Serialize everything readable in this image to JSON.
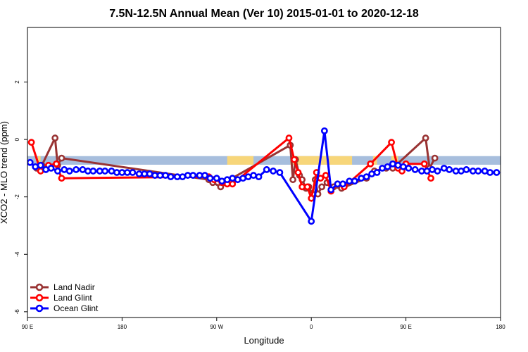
{
  "chart_data": {
    "type": "line",
    "title": "7.5N-12.5N Annual Mean (Ver 10)   2015-01-01 to 2020-12-18",
    "xlabel": "Longitude",
    "ylabel": "XCO2 - MLO trend (ppm)",
    "xlim": [
      -90,
      270
    ],
    "ylim": [
      -6.2,
      3.9
    ],
    "x_ticks": [
      {
        "value": -90,
        "label": "90 E"
      },
      {
        "value": -18,
        "label": "180"
      },
      {
        "value": 54,
        "label": "90 W"
      },
      {
        "value": 126,
        "label": "0"
      },
      {
        "value": 198,
        "label": "90 E"
      },
      {
        "value": 270,
        "label": "180"
      }
    ],
    "y_ticks": [
      {
        "value": 2,
        "label": "2"
      },
      {
        "value": 0,
        "label": "0"
      },
      {
        "value": -2,
        "label": "-2"
      },
      {
        "value": -4,
        "label": "-4"
      },
      {
        "value": -6,
        "label": "-6"
      }
    ],
    "grid": false,
    "legend": "bottom-left",
    "land_mask": {
      "band_color": "#a7bedd",
      "land_color": "#f7d67a",
      "y_range": [
        -0.88,
        -0.58
      ],
      "land_x_ranges": [
        [
          -82,
          -80
        ],
        [
          62,
          82
        ],
        [
          110,
          157
        ],
        [
          173,
          176
        ],
        [
          187,
          192
        ]
      ]
    },
    "series": [
      {
        "name": "Land Nadir",
        "color": "#993333",
        "points": [
          [
            -83,
            -1.0
          ],
          [
            -79,
            -0.9
          ],
          [
            -69,
            0.05
          ],
          [
            -67,
            -0.9
          ],
          [
            -64,
            -0.65
          ],
          [
            48,
            -1.4
          ],
          [
            51,
            -1.5
          ],
          [
            57,
            -1.65
          ],
          [
            60,
            -1.5
          ],
          [
            110,
            -0.2
          ],
          [
            112,
            -1.4
          ],
          [
            114,
            -0.7
          ],
          [
            117,
            -1.25
          ],
          [
            119,
            -1.4
          ],
          [
            122,
            -1.7
          ],
          [
            124,
            -1.65
          ],
          [
            127,
            -1.9
          ],
          [
            129,
            -1.4
          ],
          [
            131,
            -1.9
          ],
          [
            134,
            -1.65
          ],
          [
            138,
            -1.5
          ],
          [
            143,
            -1.65
          ],
          [
            149,
            -1.7
          ],
          [
            168,
            -1.35
          ],
          [
            174,
            -1.1
          ],
          [
            183,
            -1.0
          ],
          [
            188,
            -1.0
          ],
          [
            213,
            0.05
          ],
          [
            216,
            -1.0
          ],
          [
            220,
            -0.65
          ]
        ]
      },
      {
        "name": "Land Glint",
        "color": "#ff0000",
        "points": [
          [
            -87,
            -0.1
          ],
          [
            -80,
            -1.1
          ],
          [
            -74,
            -0.9
          ],
          [
            -68,
            -0.85
          ],
          [
            -64,
            -1.35
          ],
          [
            48,
            -1.3
          ],
          [
            52,
            -1.4
          ],
          [
            58,
            -1.5
          ],
          [
            62,
            -1.55
          ],
          [
            66,
            -1.55
          ],
          [
            109,
            0.05
          ],
          [
            113,
            -0.7
          ],
          [
            116,
            -1.15
          ],
          [
            119,
            -1.65
          ],
          [
            123,
            -1.65
          ],
          [
            126,
            -2.05
          ],
          [
            130,
            -1.15
          ],
          [
            133,
            -1.35
          ],
          [
            137,
            -1.25
          ],
          [
            141,
            -1.8
          ],
          [
            146,
            -1.55
          ],
          [
            151,
            -1.65
          ],
          [
            171,
            -0.85
          ],
          [
            187,
            -0.1
          ],
          [
            192,
            -1.0
          ],
          [
            195,
            -1.1
          ],
          [
            198,
            -0.85
          ],
          [
            212,
            -0.85
          ],
          [
            217,
            -1.35
          ]
        ]
      },
      {
        "name": "Ocean Glint",
        "color": "#0000ff",
        "points": [
          [
            -88,
            -0.8
          ],
          [
            -84,
            -0.95
          ],
          [
            -80,
            -0.9
          ],
          [
            -76,
            -1.05
          ],
          [
            -72,
            -1.0
          ],
          [
            -67,
            -1.1
          ],
          [
            -62,
            -1.05
          ],
          [
            -58,
            -1.1
          ],
          [
            -53,
            -1.05
          ],
          [
            -48,
            -1.05
          ],
          [
            -44,
            -1.1
          ],
          [
            -40,
            -1.1
          ],
          [
            -35,
            -1.1
          ],
          [
            -31,
            -1.1
          ],
          [
            -26,
            -1.1
          ],
          [
            -22,
            -1.15
          ],
          [
            -18,
            -1.15
          ],
          [
            -14,
            -1.15
          ],
          [
            -10,
            -1.15
          ],
          [
            -5,
            -1.2
          ],
          [
            -1,
            -1.2
          ],
          [
            3,
            -1.2
          ],
          [
            7,
            -1.25
          ],
          [
            11,
            -1.25
          ],
          [
            15,
            -1.25
          ],
          [
            19,
            -1.3
          ],
          [
            24,
            -1.3
          ],
          [
            28,
            -1.3
          ],
          [
            32,
            -1.25
          ],
          [
            36,
            -1.25
          ],
          [
            41,
            -1.25
          ],
          [
            45,
            -1.25
          ],
          [
            49,
            -1.35
          ],
          [
            54,
            -1.35
          ],
          [
            58,
            -1.45
          ],
          [
            62,
            -1.4
          ],
          [
            66,
            -1.35
          ],
          [
            70,
            -1.4
          ],
          [
            74,
            -1.35
          ],
          [
            78,
            -1.3
          ],
          [
            82,
            -1.25
          ],
          [
            86,
            -1.3
          ],
          [
            92,
            -1.05
          ],
          [
            97,
            -1.1
          ],
          [
            102,
            -1.15
          ],
          [
            126,
            -2.85
          ],
          [
            136,
            0.3
          ],
          [
            141,
            -1.75
          ],
          [
            146,
            -1.55
          ],
          [
            150,
            -1.55
          ],
          [
            155,
            -1.45
          ],
          [
            159,
            -1.45
          ],
          [
            164,
            -1.35
          ],
          [
            168,
            -1.3
          ],
          [
            172,
            -1.2
          ],
          [
            176,
            -1.15
          ],
          [
            180,
            -1.0
          ],
          [
            184,
            -0.95
          ],
          [
            188,
            -0.85
          ],
          [
            192,
            -0.9
          ],
          [
            196,
            -0.95
          ],
          [
            200,
            -1.0
          ],
          [
            205,
            -1.05
          ],
          [
            210,
            -1.1
          ],
          [
            214,
            -1.1
          ],
          [
            218,
            -1.05
          ],
          [
            222,
            -1.1
          ],
          [
            227,
            -1.0
          ],
          [
            231,
            -1.05
          ],
          [
            236,
            -1.1
          ],
          [
            240,
            -1.1
          ],
          [
            244,
            -1.05
          ],
          [
            249,
            -1.1
          ],
          [
            253,
            -1.1
          ],
          [
            258,
            -1.1
          ],
          [
            262,
            -1.15
          ],
          [
            267,
            -1.15
          ]
        ]
      }
    ]
  }
}
